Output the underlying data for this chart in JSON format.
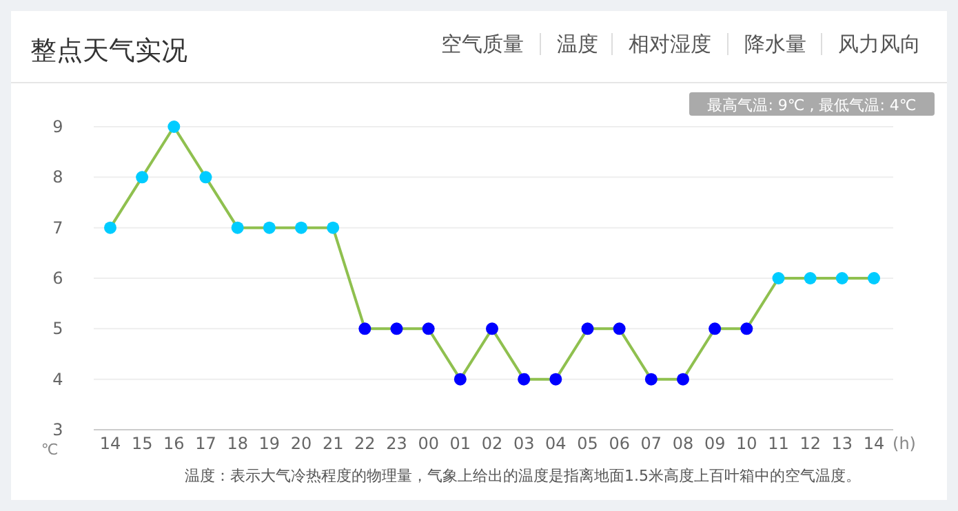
{
  "chart_data": {
    "type": "line",
    "title": "整点天气实况",
    "xlabel": "(h)",
    "ylabel": "℃",
    "annotations": [
      "空气质量",
      "温度",
      "相对湿度",
      "降水量",
      "风力风向",
      "最高气温: 9℃ , 最低气温: 4℃",
      "温度：表示大气冷热程度的物理量，气象上给出的温度是指离地面1.5米高度上百叶箱中的空气温度。"
    ],
    "categories": [
      "14",
      "15",
      "16",
      "17",
      "18",
      "19",
      "20",
      "21",
      "22",
      "23",
      "00",
      "01",
      "02",
      "03",
      "04",
      "05",
      "06",
      "07",
      "08",
      "09",
      "10",
      "11",
      "12",
      "13",
      "14"
    ],
    "series": [
      {
        "color": "#8fc04f",
        "values": [
          7,
          8,
          9,
          8,
          7,
          7,
          7,
          7,
          5,
          5,
          5,
          4,
          5,
          4,
          4,
          5,
          5,
          4,
          4,
          5,
          5,
          6,
          6,
          6,
          6
        ],
        "colors": [
          "#00ccff",
          "#00ccff",
          "#00ccff",
          "#00ccff",
          "#00ccff",
          "#00ccff",
          "#00ccff",
          "#00ccff",
          "#0000ff",
          "#0000ff",
          "#0000ff",
          "#0000ff",
          "#0000ff",
          "#0000ff",
          "#0000ff",
          "#0000ff",
          "#0000ff",
          "#0000ff",
          "#0000ff",
          "#0000ff",
          "#0000ff",
          "#00ccff",
          "#00ccff",
          "#00ccff",
          "#00ccff"
        ]
      }
    ],
    "ylim": [
      3,
      9
    ],
    "yticks": [
      3,
      4,
      5,
      6,
      7,
      8,
      9
    ],
    "grid": "y",
    "marker": "circle",
    "line_style": "solid"
  }
}
